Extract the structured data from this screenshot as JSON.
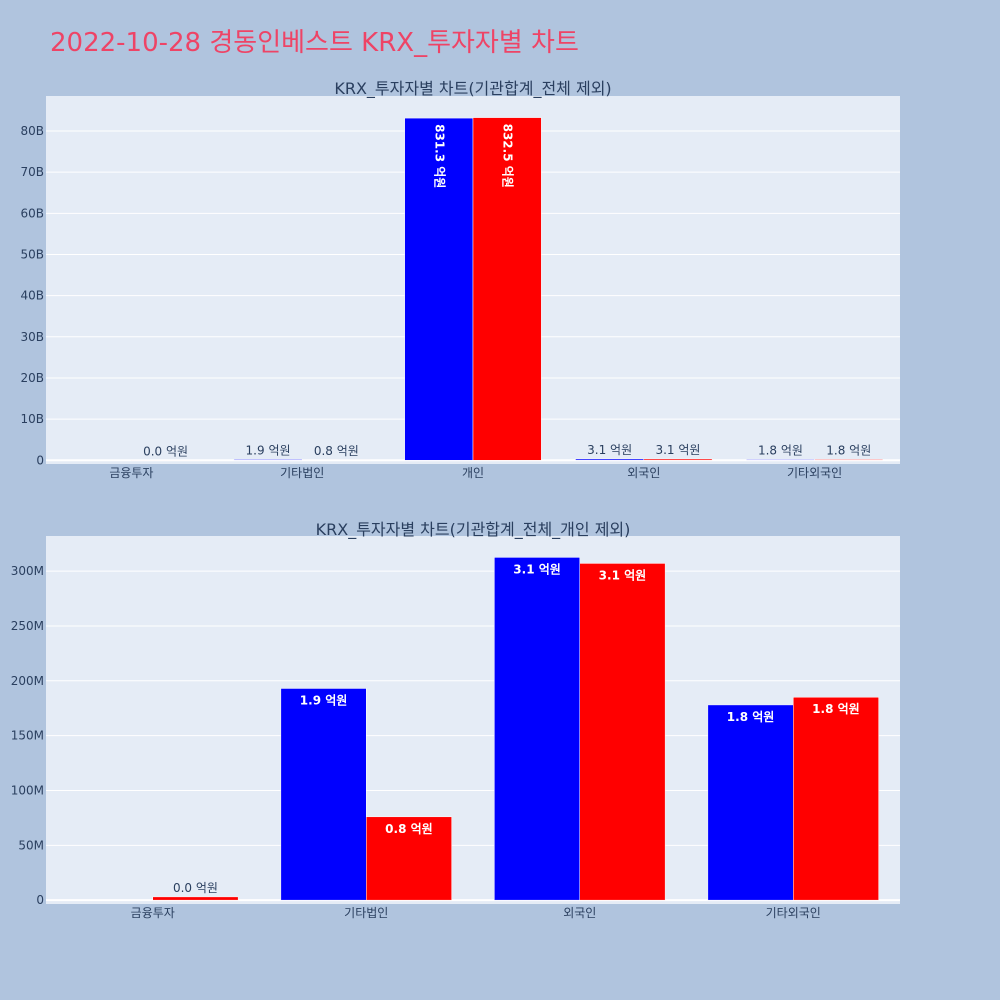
{
  "page": {
    "title": "2022-10-28 경동인베스트 KRX_투자자별 차트",
    "title_color": "#ee4466",
    "background": "#b0c4de",
    "plot_background": "#e5ecf6"
  },
  "chart_data": [
    {
      "type": "bar",
      "title": "KRX_투자자별 차트(기관합계_전체 제외)",
      "xlabel": "",
      "ylabel": "",
      "categories": [
        "금융투자",
        "기타법인",
        "개인",
        "외국인",
        "기타외국인"
      ],
      "series": [
        {
          "color": "#0000ff",
          "values": [
            0,
            190000000,
            83130000000,
            312000000,
            178000000
          ],
          "labels": [
            "",
            "1.9 억원",
            "831.3 억원",
            "3.1 억원",
            "1.8 억원"
          ]
        },
        {
          "color": "#ff0000",
          "values": [
            3000000,
            76000000,
            83250000000,
            307000000,
            185000000
          ],
          "labels": [
            "0.0 억원",
            "0.8 억원",
            "832.5 억원",
            "3.1 억원",
            "1.8 억원"
          ]
        }
      ],
      "ylim": [
        -900000000,
        88500000000
      ],
      "yticks": [
        0,
        10000000000,
        20000000000,
        30000000000,
        40000000000,
        50000000000,
        60000000000,
        70000000000,
        80000000000
      ],
      "ytick_labels": [
        "0",
        "10B",
        "20B",
        "30B",
        "40B",
        "50B",
        "60B",
        "70B",
        "80B"
      ],
      "grid": true,
      "legend": "none"
    },
    {
      "type": "bar",
      "title": "KRX_투자자별 차트(기관합계_전체_개인 제외)",
      "xlabel": "",
      "ylabel": "",
      "categories": [
        "금융투자",
        "기타법인",
        "외국인",
        "기타외국인"
      ],
      "series": [
        {
          "color": "#0000ff",
          "values": [
            0,
            193000000,
            312500000,
            178000000
          ],
          "labels": [
            "",
            "1.9 억원",
            "3.1 억원",
            "1.8 억원"
          ]
        },
        {
          "color": "#ff0000",
          "values": [
            3000000,
            76000000,
            307000000,
            185000000
          ],
          "labels": [
            "0.0 억원",
            "0.8 억원",
            "3.1 억원",
            "1.8 억원"
          ]
        }
      ],
      "ylim": [
        -3500000,
        332000000
      ],
      "yticks": [
        0,
        50000000,
        100000000,
        150000000,
        200000000,
        250000000,
        300000000
      ],
      "ytick_labels": [
        "0",
        "50M",
        "100M",
        "150M",
        "200M",
        "250M",
        "300M"
      ],
      "grid": true,
      "legend": "none"
    }
  ]
}
